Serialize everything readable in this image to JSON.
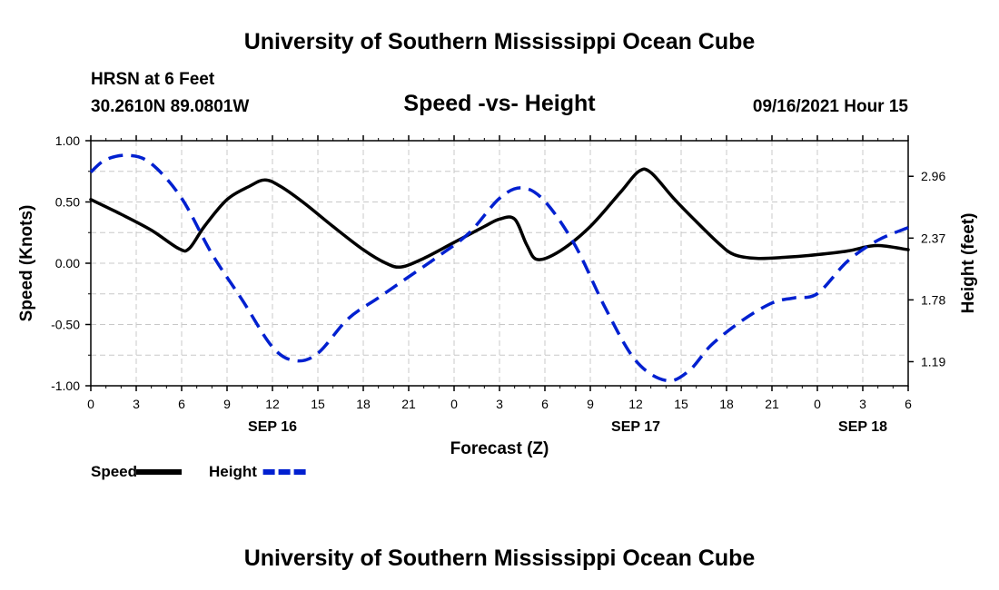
{
  "page": {
    "title_top": "University of Southern Mississippi Ocean Cube",
    "title_bottom": "University of Southern Mississippi Ocean Cube",
    "station": "HRSN at 6 Feet",
    "coords": "30.2610N  89.0801W",
    "plot_title": "Speed -vs- Height",
    "datetime": "09/16/2021 Hour 15"
  },
  "chart_data": {
    "type": "line",
    "x_unit": "hours from 2021-09-16 00Z",
    "xlim": [
      0,
      54
    ],
    "x_ticks": [
      0,
      3,
      6,
      9,
      12,
      15,
      18,
      21,
      24,
      27,
      30,
      33,
      36,
      39,
      42,
      45,
      48,
      51,
      54
    ],
    "x_tick_labels": [
      "0",
      "3",
      "6",
      "9",
      "12",
      "15",
      "18",
      "21",
      "0",
      "3",
      "6",
      "9",
      "12",
      "15",
      "18",
      "21",
      "0",
      "3",
      "6"
    ],
    "day_labels": [
      {
        "x": 12,
        "label": "SEP 16"
      },
      {
        "x": 36,
        "label": "SEP 17"
      },
      {
        "x": 51,
        "label": "SEP 18"
      }
    ],
    "xlabel": "Forecast (Z)",
    "ylabel_left": "Speed (Knots)",
    "ylabel_right": "Height (feet)",
    "ylim_left": [
      -1.0,
      1.0
    ],
    "yticks_left": [
      -1.0,
      -0.5,
      0.0,
      0.5,
      1.0
    ],
    "ytick_labels_left": [
      "-1.00",
      "-0.50",
      "0.00",
      "0.50",
      "1.00"
    ],
    "ylim_right": [
      0.96,
      3.3
    ],
    "yticks_right": [
      1.19,
      1.78,
      2.37,
      2.96
    ],
    "ytick_labels_right": [
      "1.19",
      "1.78",
      "2.37",
      "2.96"
    ],
    "grid": true,
    "series": [
      {
        "name": "Speed",
        "axis": "left",
        "color": "#000000",
        "style": "solid",
        "x": [
          0,
          2,
          4,
          5.8,
          6.5,
          7.5,
          9,
          10.5,
          11.5,
          12.5,
          14,
          16,
          18,
          19.5,
          20.5,
          22,
          24,
          26,
          27,
          28,
          28.8,
          29.5,
          31,
          33,
          35,
          36.2,
          37,
          38.5,
          40,
          41.5,
          42.5,
          44,
          46,
          48,
          50,
          51.5,
          52.5,
          54
        ],
        "y": [
          0.52,
          0.4,
          0.27,
          0.12,
          0.12,
          0.3,
          0.52,
          0.63,
          0.68,
          0.63,
          0.5,
          0.3,
          0.11,
          0.0,
          -0.03,
          0.04,
          0.17,
          0.3,
          0.36,
          0.36,
          0.15,
          0.03,
          0.1,
          0.3,
          0.58,
          0.75,
          0.74,
          0.53,
          0.34,
          0.16,
          0.07,
          0.04,
          0.05,
          0.07,
          0.1,
          0.14,
          0.14,
          0.11
        ]
      },
      {
        "name": "Height",
        "axis": "right",
        "color": "#0020d0",
        "style": "dashed",
        "x": [
          0,
          1,
          2.5,
          4,
          6,
          8,
          10,
          12,
          13.5,
          15,
          17,
          19,
          21,
          23,
          25,
          27,
          28.5,
          30,
          32,
          34,
          36,
          38,
          39.5,
          41,
          43,
          45,
          46.5,
          48,
          50,
          52,
          54
        ],
        "y": [
          3.0,
          3.12,
          3.16,
          3.08,
          2.75,
          2.22,
          1.78,
          1.33,
          1.2,
          1.27,
          1.6,
          1.8,
          2.0,
          2.2,
          2.42,
          2.75,
          2.85,
          2.72,
          2.3,
          1.7,
          1.2,
          1.01,
          1.1,
          1.35,
          1.58,
          1.75,
          1.8,
          1.84,
          2.15,
          2.35,
          2.47
        ]
      }
    ],
    "legend": [
      {
        "label": "Speed",
        "color": "#000000",
        "style": "solid"
      },
      {
        "label": "Height",
        "color": "#0020d0",
        "style": "dashed"
      }
    ]
  }
}
